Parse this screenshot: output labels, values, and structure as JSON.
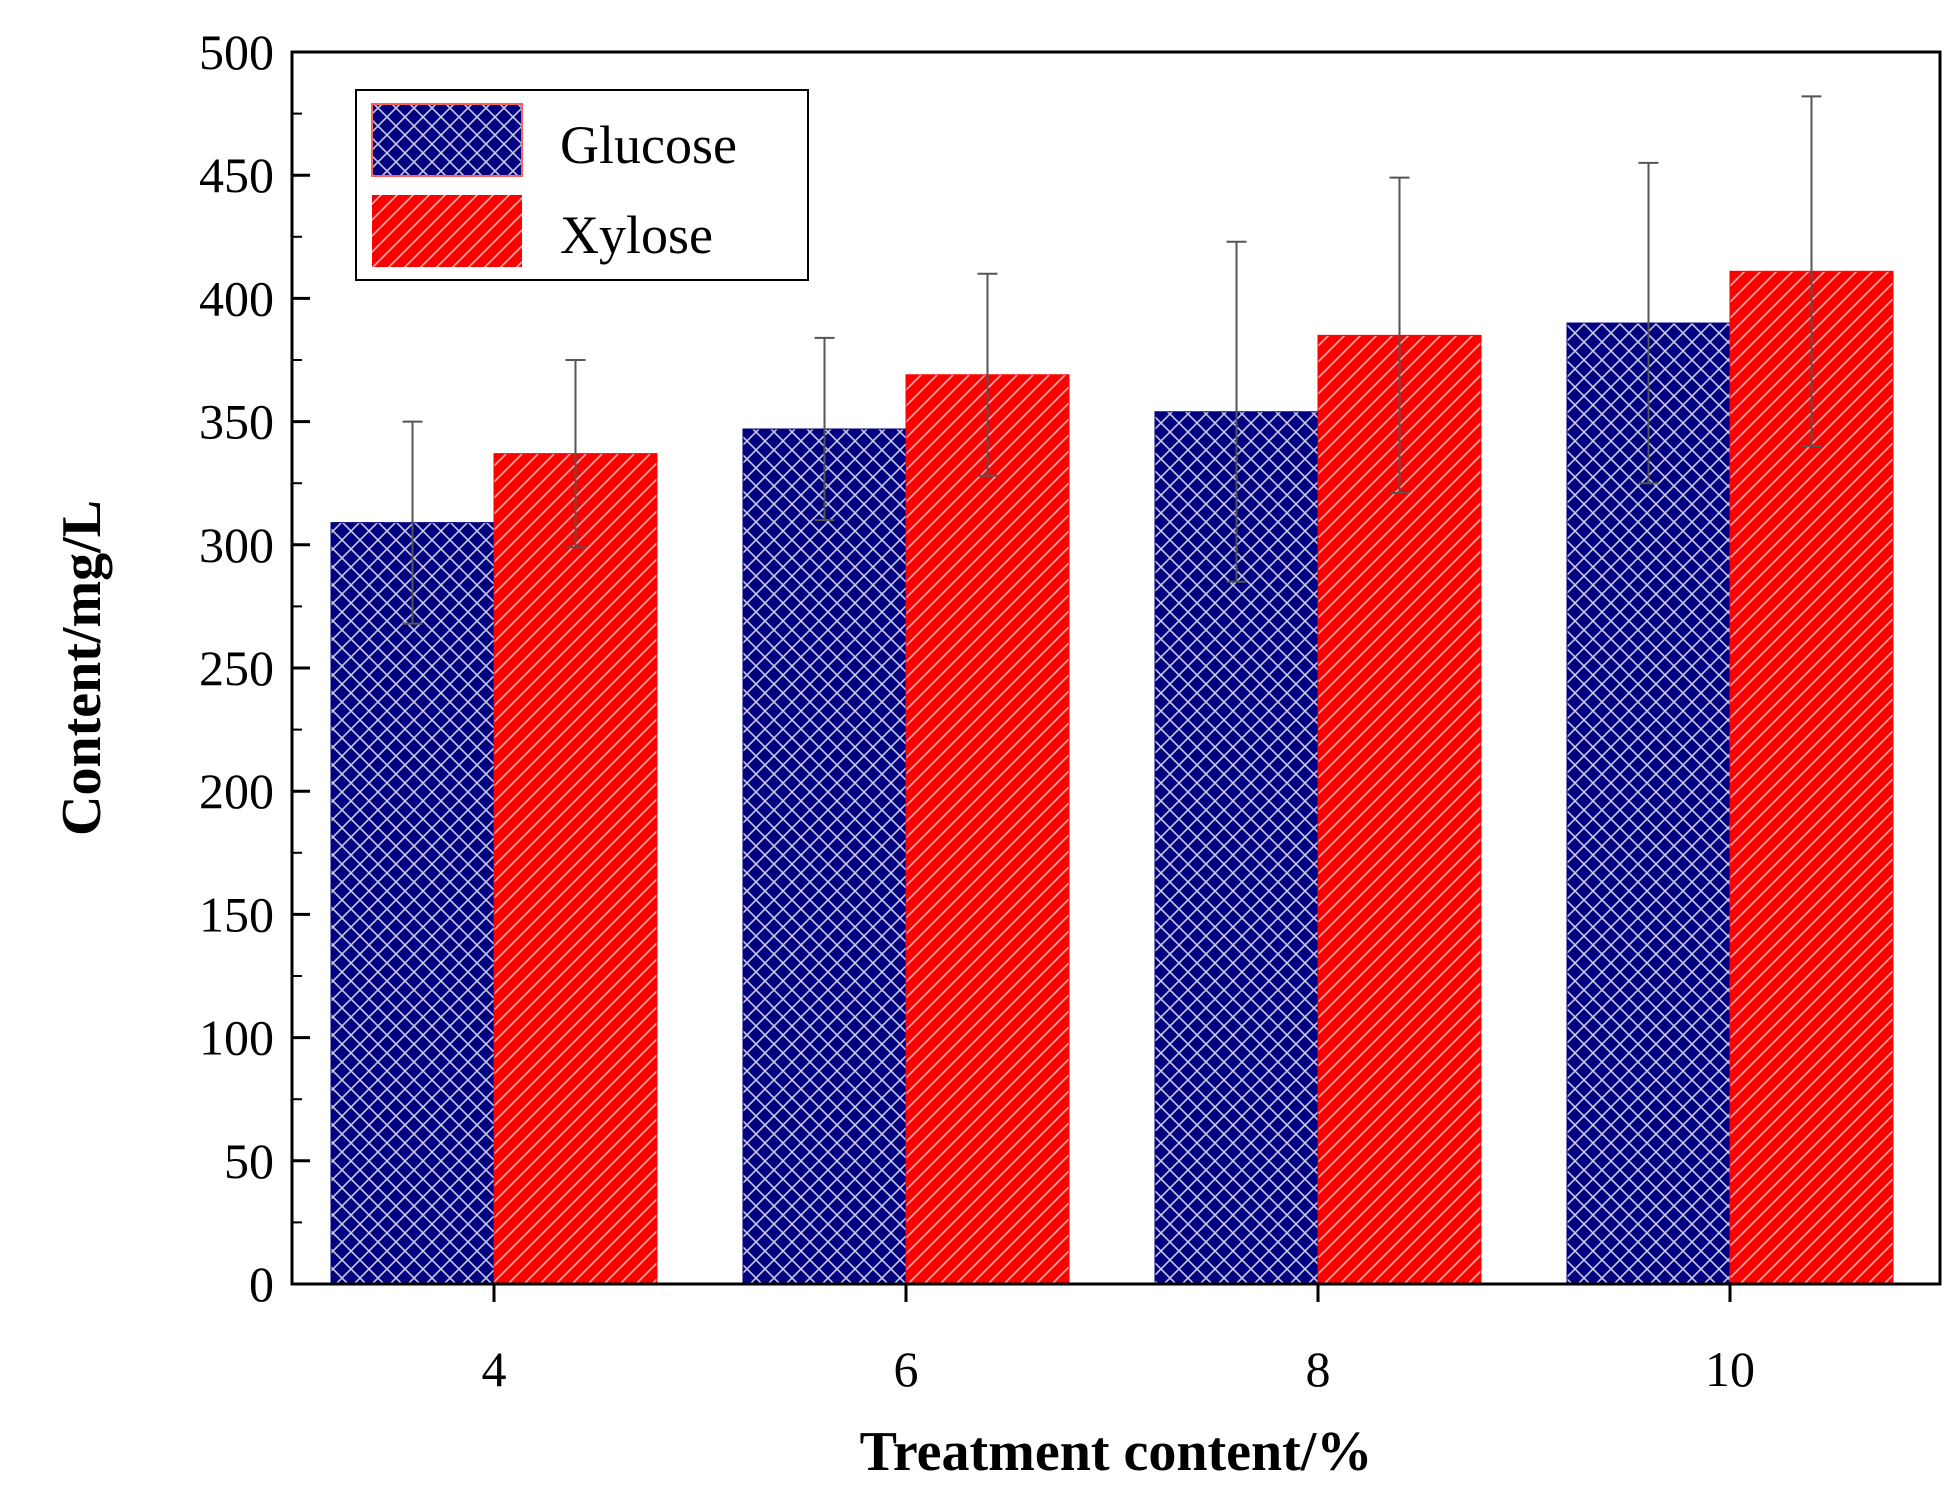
{
  "chart_data": {
    "type": "bar",
    "title": "",
    "xlabel": "Treatment content/%",
    "ylabel": "Content/mg/L",
    "categories": [
      "4",
      "6",
      "8",
      "10"
    ],
    "ylim": [
      0,
      500
    ],
    "yticks": [
      0,
      50,
      100,
      150,
      200,
      250,
      300,
      350,
      400,
      450,
      500
    ],
    "legend_position": "top-left",
    "series": [
      {
        "name": "Glucose",
        "color": "#000080",
        "pattern": "crosshatch",
        "values": [
          309,
          347,
          354,
          390
        ],
        "errors": [
          41,
          37,
          69,
          65
        ]
      },
      {
        "name": "Xylose",
        "color": "#ff0000",
        "pattern": "diagonal",
        "values": [
          337,
          369,
          385,
          411
        ],
        "errors": [
          38,
          41,
          64,
          71
        ]
      }
    ]
  }
}
